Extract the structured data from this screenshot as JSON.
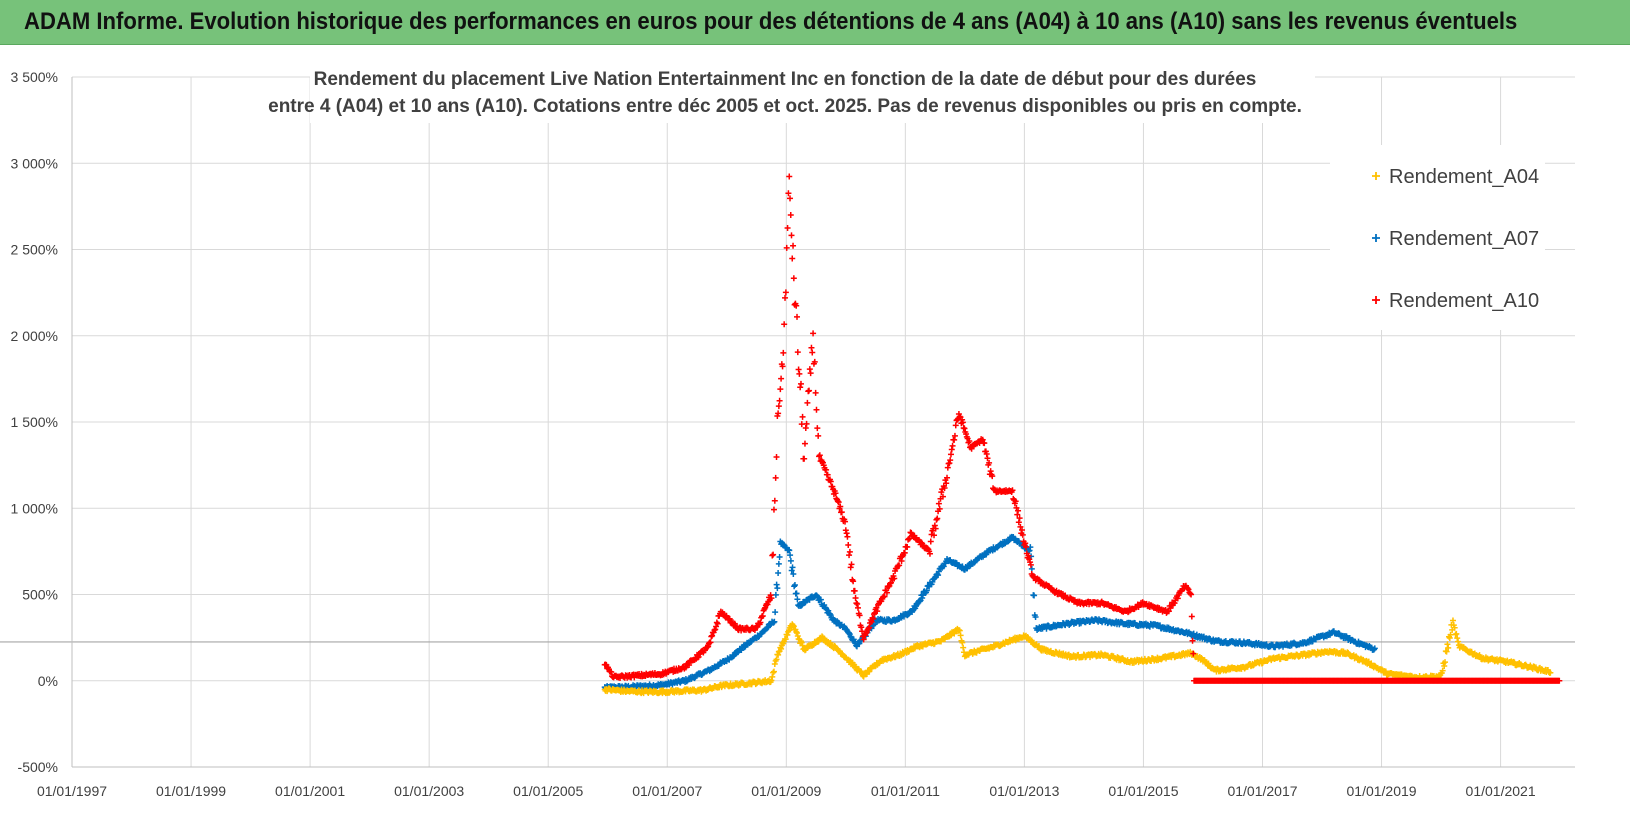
{
  "header": {
    "title": "ADAM Informe. Evolution historique des performances en euros pour des détentions de 4 ans (A04) à 10 ans (A10) sans les revenus éventuels"
  },
  "colors": {
    "header_bg": "#77c27a",
    "grid": "#d9d9d9",
    "A04": "#ffc000",
    "A07": "#0070c0",
    "A10": "#ff0000"
  },
  "chart_data": {
    "type": "scatter",
    "title_line1": "Rendement du placement Live Nation Entertainment Inc en fonction de la date de début pour des durées",
    "title_line2": "entre 4 (A04) et 10 ans (A10). Cotations entre déc 2005 et oct. 2025. Pas de revenus disponibles ou pris en compte.",
    "xlabel": "",
    "ylabel": "",
    "xlim": [
      1997.0,
      2022.25
    ],
    "ylim": [
      -500,
      3500
    ],
    "x_ticks": [
      1997,
      1999,
      2001,
      2003,
      2005,
      2007,
      2009,
      2011,
      2013,
      2015,
      2017,
      2019,
      2021
    ],
    "x_tick_labels": [
      "01/01/1997",
      "01/01/1999",
      "01/01/2001",
      "01/01/2003",
      "01/01/2005",
      "01/01/2007",
      "01/01/2009",
      "01/01/2011",
      "01/01/2013",
      "01/01/2015",
      "01/01/2017",
      "01/01/2019",
      "01/01/2021"
    ],
    "y_ticks": [
      -500,
      0,
      500,
      1000,
      1500,
      2000,
      2500,
      3000,
      3500
    ],
    "y_tick_labels": [
      "-500%",
      "0%",
      "500%",
      "1 000%",
      "1 500%",
      "2 000%",
      "2 500%",
      "3 000%",
      "3 500%"
    ],
    "reference_line_y": 225,
    "legend_position": "top-right",
    "series": [
      {
        "name": "Rendement_A04",
        "color": "#ffc000",
        "points": [
          [
            2005.95,
            -50
          ],
          [
            2006.3,
            -60
          ],
          [
            2006.8,
            -65
          ],
          [
            2007.2,
            -60
          ],
          [
            2007.6,
            -55
          ],
          [
            2007.9,
            -30
          ],
          [
            2008.2,
            -20
          ],
          [
            2008.5,
            -10
          ],
          [
            2008.75,
            0
          ],
          [
            2008.85,
            150
          ],
          [
            2008.95,
            220
          ],
          [
            2009.1,
            330
          ],
          [
            2009.3,
            180
          ],
          [
            2009.6,
            250
          ],
          [
            2009.9,
            170
          ],
          [
            2010.1,
            100
          ],
          [
            2010.3,
            30
          ],
          [
            2010.6,
            120
          ],
          [
            2010.9,
            150
          ],
          [
            2011.2,
            200
          ],
          [
            2011.6,
            230
          ],
          [
            2011.9,
            300
          ],
          [
            2012.0,
            150
          ],
          [
            2012.5,
            200
          ],
          [
            2013.0,
            260
          ],
          [
            2013.3,
            180
          ],
          [
            2013.8,
            140
          ],
          [
            2014.3,
            150
          ],
          [
            2014.8,
            110
          ],
          [
            2015.3,
            130
          ],
          [
            2015.8,
            160
          ],
          [
            2016.0,
            120
          ],
          [
            2016.2,
            60
          ],
          [
            2016.7,
            80
          ],
          [
            2017.2,
            130
          ],
          [
            2017.7,
            150
          ],
          [
            2018.1,
            170
          ],
          [
            2018.4,
            160
          ],
          [
            2018.8,
            100
          ],
          [
            2019.1,
            40
          ],
          [
            2019.6,
            20
          ],
          [
            2020.0,
            25
          ],
          [
            2020.2,
            340
          ],
          [
            2020.3,
            200
          ],
          [
            2020.7,
            130
          ],
          [
            2021.1,
            110
          ],
          [
            2021.5,
            80
          ],
          [
            2021.85,
            50
          ]
        ]
      },
      {
        "name": "Rendement_A07",
        "color": "#0070c0",
        "points": [
          [
            2005.95,
            -40
          ],
          [
            2006.4,
            -35
          ],
          [
            2006.9,
            -25
          ],
          [
            2007.3,
            0
          ],
          [
            2007.7,
            60
          ],
          [
            2008.0,
            120
          ],
          [
            2008.3,
            200
          ],
          [
            2008.6,
            280
          ],
          [
            2008.8,
            350
          ],
          [
            2008.9,
            800
          ],
          [
            2009.05,
            750
          ],
          [
            2009.2,
            430
          ],
          [
            2009.5,
            500
          ],
          [
            2009.8,
            350
          ],
          [
            2010.0,
            300
          ],
          [
            2010.2,
            200
          ],
          [
            2010.5,
            350
          ],
          [
            2010.8,
            350
          ],
          [
            2011.1,
            400
          ],
          [
            2011.4,
            550
          ],
          [
            2011.7,
            700
          ],
          [
            2012.0,
            650
          ],
          [
            2012.4,
            750
          ],
          [
            2012.8,
            830
          ],
          [
            2013.1,
            750
          ],
          [
            2013.2,
            300
          ],
          [
            2013.7,
            330
          ],
          [
            2014.2,
            350
          ],
          [
            2014.7,
            330
          ],
          [
            2015.2,
            320
          ],
          [
            2015.7,
            280
          ],
          [
            2016.2,
            230
          ],
          [
            2016.7,
            220
          ],
          [
            2017.2,
            200
          ],
          [
            2017.7,
            220
          ],
          [
            2018.2,
            280
          ],
          [
            2018.6,
            220
          ],
          [
            2018.9,
            180
          ]
        ]
      },
      {
        "name": "Rendement_A10",
        "color": "#ff0000",
        "points": [
          [
            2005.95,
            100
          ],
          [
            2006.1,
            20
          ],
          [
            2006.5,
            30
          ],
          [
            2006.9,
            40
          ],
          [
            2007.3,
            80
          ],
          [
            2007.7,
            200
          ],
          [
            2007.9,
            400
          ],
          [
            2008.2,
            300
          ],
          [
            2008.5,
            300
          ],
          [
            2008.75,
            500
          ],
          [
            2008.85,
            1500
          ],
          [
            2008.95,
            1900
          ],
          [
            2009.05,
            2900
          ],
          [
            2009.1,
            2500
          ],
          [
            2009.3,
            1300
          ],
          [
            2009.45,
            2000
          ],
          [
            2009.55,
            1300
          ],
          [
            2009.8,
            1100
          ],
          [
            2010.0,
            900
          ],
          [
            2010.15,
            500
          ],
          [
            2010.3,
            250
          ],
          [
            2010.5,
            400
          ],
          [
            2010.8,
            600
          ],
          [
            2011.1,
            850
          ],
          [
            2011.4,
            750
          ],
          [
            2011.7,
            1200
          ],
          [
            2011.9,
            1550
          ],
          [
            2012.1,
            1350
          ],
          [
            2012.3,
            1400
          ],
          [
            2012.5,
            1100
          ],
          [
            2012.8,
            1100
          ],
          [
            2013.0,
            800
          ],
          [
            2013.15,
            600
          ],
          [
            2013.5,
            520
          ],
          [
            2013.9,
            450
          ],
          [
            2014.3,
            450
          ],
          [
            2014.7,
            400
          ],
          [
            2015.0,
            450
          ],
          [
            2015.4,
            400
          ],
          [
            2015.7,
            550
          ],
          [
            2015.8,
            500
          ],
          [
            2015.85,
            0
          ],
          [
            2016.5,
            0
          ],
          [
            2017.5,
            0
          ],
          [
            2018.5,
            0
          ],
          [
            2019.5,
            0
          ],
          [
            2020.5,
            0
          ],
          [
            2021.5,
            0
          ],
          [
            2022.0,
            0
          ]
        ]
      }
    ]
  }
}
